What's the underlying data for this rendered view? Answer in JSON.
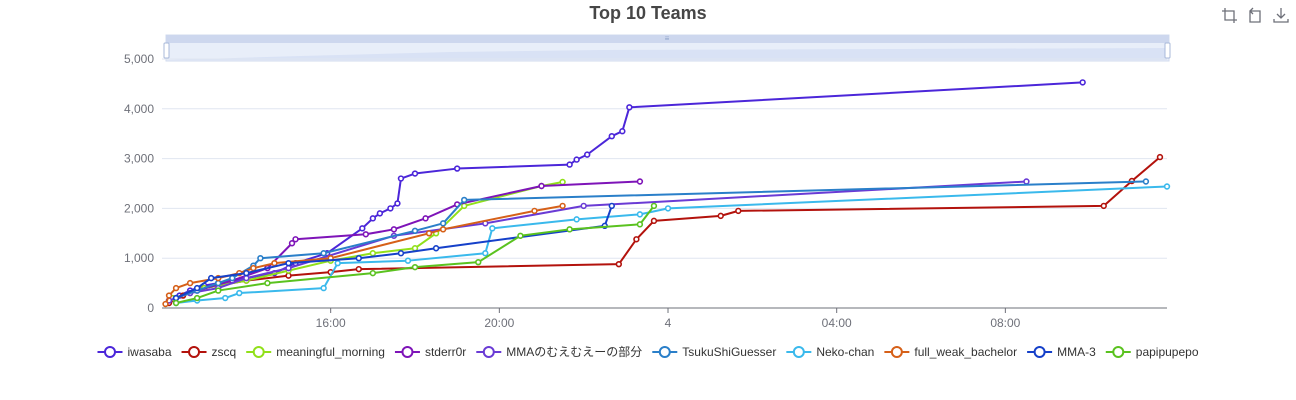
{
  "toolbox": {
    "icons": [
      "crop-icon",
      "restore-icon",
      "download-icon"
    ]
  },
  "chart_data": {
    "type": "line",
    "title": "Top 10 Teams",
    "xlabel": "",
    "ylabel": "",
    "ylim": [
      0,
      5000
    ],
    "xlim": [
      "2022-01-03 12:00",
      "2022-01-04 11:50"
    ],
    "x_tick_labels": [
      "16:00",
      "20:00",
      "4",
      "04:00",
      "08:00"
    ],
    "y_tick_labels": [
      "0",
      "1,000",
      "2,000",
      "3,000",
      "4,000",
      "5,000"
    ],
    "grid": true,
    "legend_position": "bottom",
    "dataZoom_slider": true,
    "series": [
      {
        "name": "iwasaba",
        "color": "#4b26d9",
        "points": [
          [
            "2022-01-03 12:10",
            150
          ],
          [
            "2022-01-03 12:25",
            250
          ],
          [
            "2022-01-03 12:40",
            350
          ],
          [
            "2022-01-03 13:00",
            450
          ],
          [
            "2022-01-03 13:20",
            500
          ],
          [
            "2022-01-03 14:00",
            600
          ],
          [
            "2022-01-03 14:40",
            700
          ],
          [
            "2022-01-03 15:10",
            900
          ],
          [
            "2022-01-03 15:55",
            1100
          ],
          [
            "2022-01-03 16:45",
            1600
          ],
          [
            "2022-01-03 17:00",
            1800
          ],
          [
            "2022-01-03 17:10",
            1900
          ],
          [
            "2022-01-03 17:25",
            2000
          ],
          [
            "2022-01-03 17:35",
            2100
          ],
          [
            "2022-01-03 17:40",
            2600
          ],
          [
            "2022-01-03 18:00",
            2700
          ],
          [
            "2022-01-03 19:00",
            2800
          ],
          [
            "2022-01-03 21:40",
            2880
          ],
          [
            "2022-01-03 21:50",
            2980
          ],
          [
            "2022-01-03 22:05",
            3080
          ],
          [
            "2022-01-03 22:40",
            3450
          ],
          [
            "2022-01-03 22:55",
            3550
          ],
          [
            "2022-01-03 23:05",
            4030
          ],
          [
            "2022-01-04 09:50",
            4530
          ]
        ]
      },
      {
        "name": "zscq",
        "color": "#b3120c",
        "points": [
          [
            "2022-01-03 12:10",
            100
          ],
          [
            "2022-01-03 12:30",
            250
          ],
          [
            "2022-01-03 13:00",
            400
          ],
          [
            "2022-01-03 14:00",
            550
          ],
          [
            "2022-01-03 15:00",
            650
          ],
          [
            "2022-01-03 16:00",
            720
          ],
          [
            "2022-01-03 16:40",
            780
          ],
          [
            "2022-01-03 22:50",
            880
          ],
          [
            "2022-01-03 23:15",
            1380
          ],
          [
            "2022-01-03 23:40",
            1750
          ],
          [
            "2022-01-04 01:15",
            1850
          ],
          [
            "2022-01-04 01:40",
            1950
          ],
          [
            "2022-01-04 10:20",
            2050
          ],
          [
            "2022-01-04 11:00",
            2550
          ],
          [
            "2022-01-04 11:40",
            3030
          ]
        ]
      },
      {
        "name": "meaningful_morning",
        "color": "#91e01a",
        "points": [
          [
            "2022-01-03 12:15",
            200
          ],
          [
            "2022-01-03 12:40",
            300
          ],
          [
            "2022-01-03 13:00",
            400
          ],
          [
            "2022-01-03 14:00",
            550
          ],
          [
            "2022-01-03 15:00",
            750
          ],
          [
            "2022-01-03 16:00",
            950
          ],
          [
            "2022-01-03 17:00",
            1100
          ],
          [
            "2022-01-03 18:00",
            1200
          ],
          [
            "2022-01-03 18:30",
            1500
          ],
          [
            "2022-01-03 19:10",
            2050
          ],
          [
            "2022-01-03 21:00",
            2450
          ],
          [
            "2022-01-03 21:30",
            2530
          ]
        ]
      },
      {
        "name": "stderr0r",
        "color": "#7e14b8",
        "points": [
          [
            "2022-01-03 12:20",
            200
          ],
          [
            "2022-01-03 12:50",
            350
          ],
          [
            "2022-01-03 13:40",
            550
          ],
          [
            "2022-01-03 14:30",
            800
          ],
          [
            "2022-01-03 15:05",
            1300
          ],
          [
            "2022-01-03 15:10",
            1380
          ],
          [
            "2022-01-03 16:50",
            1480
          ],
          [
            "2022-01-03 17:30",
            1580
          ],
          [
            "2022-01-03 18:15",
            1800
          ],
          [
            "2022-01-03 19:00",
            2080
          ],
          [
            "2022-01-03 21:00",
            2450
          ],
          [
            "2022-01-03 23:20",
            2540
          ]
        ]
      },
      {
        "name": "MMAのむえむえーの部分",
        "color": "#6a3bd5",
        "points": [
          [
            "2022-01-03 12:10",
            150
          ],
          [
            "2022-01-03 12:40",
            300
          ],
          [
            "2022-01-03 13:20",
            400
          ],
          [
            "2022-01-03 14:00",
            600
          ],
          [
            "2022-01-03 15:00",
            800
          ],
          [
            "2022-01-03 17:30",
            1450
          ],
          [
            "2022-01-03 19:40",
            1700
          ],
          [
            "2022-01-03 22:00",
            2050
          ],
          [
            "2022-01-04 08:30",
            2540
          ]
        ]
      },
      {
        "name": "TsukuShiGuesser",
        "color": "#2a7fc9",
        "points": [
          [
            "2022-01-03 12:20",
            200
          ],
          [
            "2022-01-03 12:50",
            350
          ],
          [
            "2022-01-03 13:20",
            500
          ],
          [
            "2022-01-03 13:40",
            600
          ],
          [
            "2022-01-03 14:10",
            850
          ],
          [
            "2022-01-03 14:20",
            1000
          ],
          [
            "2022-01-03 15:50",
            1100
          ],
          [
            "2022-01-03 18:00",
            1550
          ],
          [
            "2022-01-03 18:40",
            1700
          ],
          [
            "2022-01-03 19:10",
            2170
          ],
          [
            "2022-01-04 11:20",
            2540
          ]
        ]
      },
      {
        "name": "Neko-chan",
        "color": "#3ab9ec",
        "points": [
          [
            "2022-01-03 12:20",
            100
          ],
          [
            "2022-01-03 12:50",
            150
          ],
          [
            "2022-01-03 13:30",
            200
          ],
          [
            "2022-01-03 13:50",
            300
          ],
          [
            "2022-01-03 15:50",
            400
          ],
          [
            "2022-01-03 16:10",
            900
          ],
          [
            "2022-01-03 17:50",
            950
          ],
          [
            "2022-01-03 19:40",
            1100
          ],
          [
            "2022-01-03 19:50",
            1600
          ],
          [
            "2022-01-03 21:50",
            1780
          ],
          [
            "2022-01-03 23:20",
            1880
          ],
          [
            "2022-01-04 00:00",
            2000
          ],
          [
            "2022-01-04 11:50",
            2440
          ]
        ]
      },
      {
        "name": "full_weak_bachelor",
        "color": "#d66018",
        "points": [
          [
            "2022-01-03 12:05",
            80
          ],
          [
            "2022-01-03 12:10",
            250
          ],
          [
            "2022-01-03 12:20",
            400
          ],
          [
            "2022-01-03 12:40",
            500
          ],
          [
            "2022-01-03 13:20",
            600
          ],
          [
            "2022-01-03 13:50",
            700
          ],
          [
            "2022-01-03 14:10",
            800
          ],
          [
            "2022-01-03 14:40",
            900
          ],
          [
            "2022-01-03 16:00",
            1000
          ],
          [
            "2022-01-03 18:20",
            1500
          ],
          [
            "2022-01-03 18:40",
            1580
          ],
          [
            "2022-01-03 20:50",
            1950
          ],
          [
            "2022-01-03 21:30",
            2050
          ]
        ]
      },
      {
        "name": "MMA-3",
        "color": "#1540c9",
        "points": [
          [
            "2022-01-03 12:20",
            200
          ],
          [
            "2022-01-03 12:50",
            400
          ],
          [
            "2022-01-03 13:10",
            600
          ],
          [
            "2022-01-03 14:00",
            700
          ],
          [
            "2022-01-03 15:00",
            900
          ],
          [
            "2022-01-03 16:40",
            1000
          ],
          [
            "2022-01-03 17:40",
            1100
          ],
          [
            "2022-01-03 18:30",
            1200
          ],
          [
            "2022-01-03 22:30",
            1650
          ],
          [
            "2022-01-03 22:40",
            2050
          ]
        ]
      },
      {
        "name": "papipupepo",
        "color": "#5ac21f",
        "points": [
          [
            "2022-01-03 12:20",
            100
          ],
          [
            "2022-01-03 12:50",
            200
          ],
          [
            "2022-01-03 13:20",
            350
          ],
          [
            "2022-01-03 14:30",
            500
          ],
          [
            "2022-01-03 17:00",
            700
          ],
          [
            "2022-01-03 18:00",
            820
          ],
          [
            "2022-01-03 19:30",
            920
          ],
          [
            "2022-01-03 20:30",
            1450
          ],
          [
            "2022-01-03 21:40",
            1580
          ],
          [
            "2022-01-03 23:20",
            1680
          ],
          [
            "2022-01-03 23:40",
            2050
          ]
        ]
      }
    ]
  }
}
